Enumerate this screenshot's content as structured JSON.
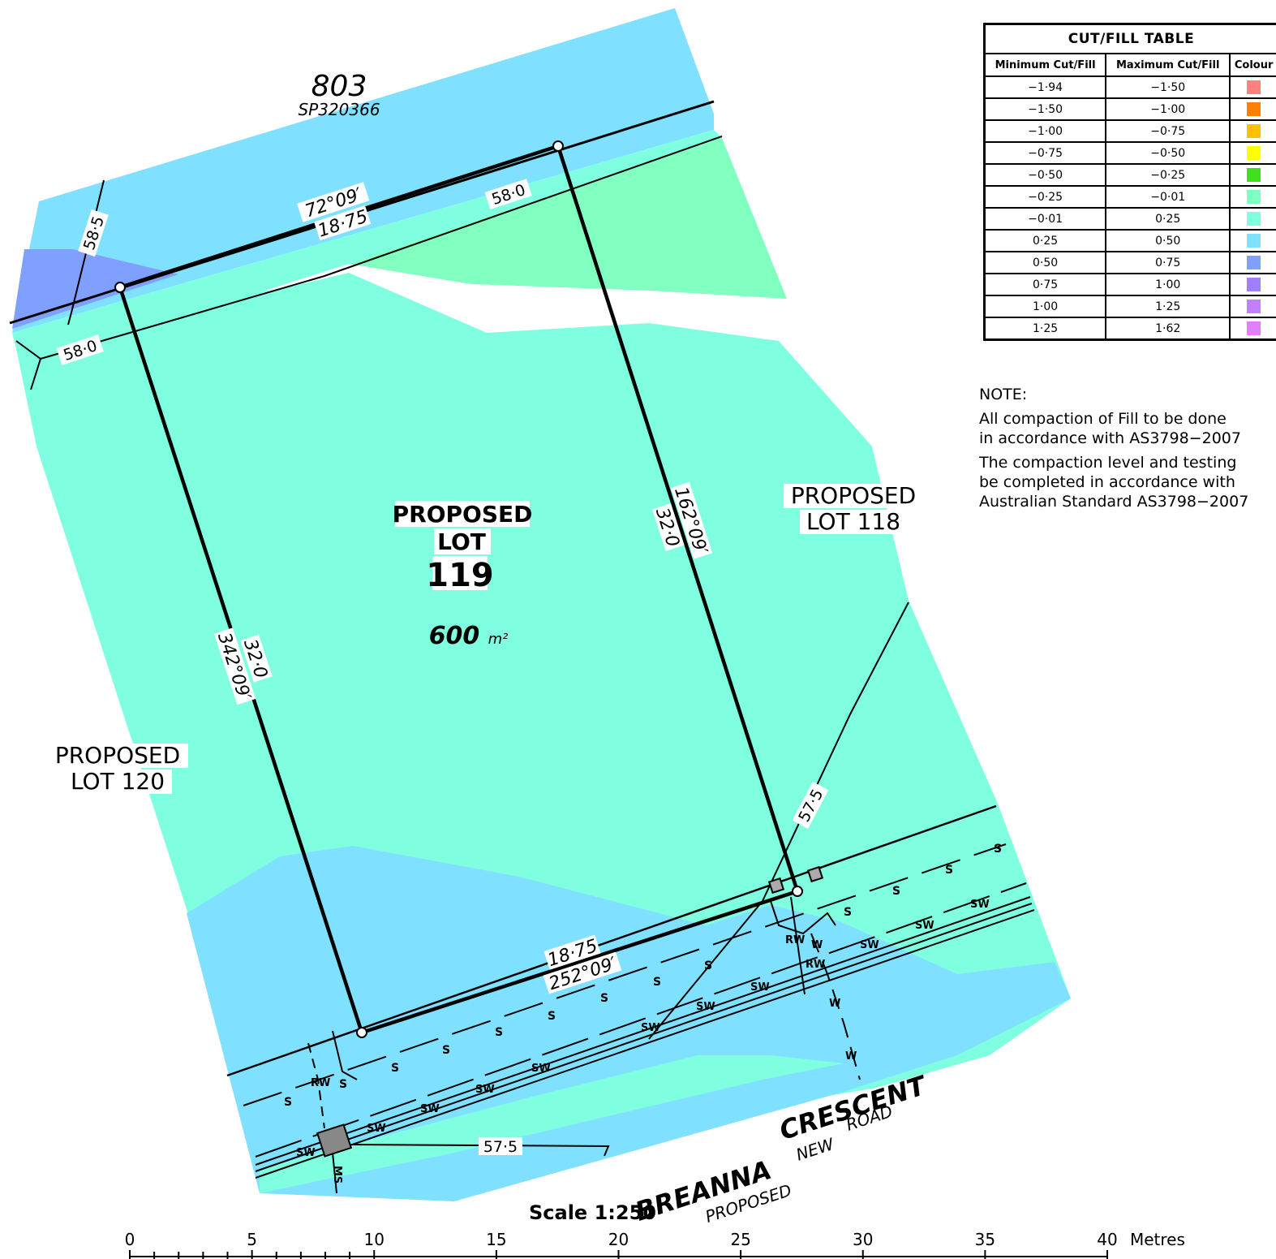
{
  "lot": {
    "title_1": "PROPOSED",
    "title_2": "LOT",
    "number": "119",
    "area_value": "600",
    "area_unit": "m²"
  },
  "neighbours": {
    "lot_118_line1": "PROPOSED",
    "lot_118_line2": "LOT 118",
    "lot_120_line1": "PROPOSED",
    "lot_120_line2": "LOT 120",
    "parcel_number": "803",
    "parcel_plan": "SP320366"
  },
  "road": {
    "name_1": "BREANNA",
    "name_2": "CRESCENT",
    "sub_1": "PROPOSED",
    "sub_2": "NEW",
    "sub_3": "ROAD"
  },
  "boundary_labels": {
    "top_bearing": "72°09′",
    "top_distance": "18·75",
    "right_bearing": "162°09′",
    "right_distance": "32·0",
    "left_bearing": "342°09′",
    "left_distance": "32·0",
    "bottom_distance": "18·75",
    "bottom_bearing": "252°09′"
  },
  "contours": {
    "c58_0_a": "58·0",
    "c58_0_b": "58·0",
    "c58_5": "58·5",
    "c57_5_a": "57·5",
    "c57_5_b": "57·5"
  },
  "services": {
    "sewer": "S",
    "stormwater": "SW",
    "water": "W",
    "rainwater": "RW",
    "sewer_main": "MS"
  },
  "cut_fill_table": {
    "title": "CUT/FILL TABLE",
    "headers": [
      "Minimum Cut/Fill",
      "Maximum Cut/Fill",
      "Colour"
    ],
    "rows": [
      {
        "min": "−1·94",
        "max": "−1·50",
        "color": "#ff8080"
      },
      {
        "min": "−1·50",
        "max": "−1·00",
        "color": "#ff8000"
      },
      {
        "min": "−1·00",
        "max": "−0·75",
        "color": "#ffc000"
      },
      {
        "min": "−0·75",
        "max": "−0·50",
        "color": "#ffff00"
      },
      {
        "min": "−0·50",
        "max": "−0·25",
        "color": "#40e020"
      },
      {
        "min": "−0·25",
        "max": "−0·01",
        "color": "#80ffc0"
      },
      {
        "min": "−0·01",
        "max": "0·25",
        "color": "#80ffe0"
      },
      {
        "min": "0·25",
        "max": "0·50",
        "color": "#80e0ff"
      },
      {
        "min": "0·50",
        "max": "0·75",
        "color": "#80a0ff"
      },
      {
        "min": "0·75",
        "max": "1·00",
        "color": "#a080ff"
      },
      {
        "min": "1·00",
        "max": "1·25",
        "color": "#c080ff"
      },
      {
        "min": "1·25",
        "max": "1·62",
        "color": "#e080ff"
      }
    ]
  },
  "notes": {
    "heading": "NOTE:",
    "note_1a": "All compaction of Fill to be done",
    "note_1b": "in accordance with AS3798−2007",
    "note_2a": "The compaction level and testing",
    "note_2b": "be completed in accordance with",
    "note_2c": "Australian Standard AS3798−2007"
  },
  "scale_bar": {
    "title": "Scale 1:250",
    "ticks": [
      "0",
      "5",
      "10",
      "15",
      "20",
      "25",
      "30",
      "35",
      "40"
    ],
    "unit": "Metres"
  },
  "colors": {
    "fill_0_25": "#80e0ff",
    "fill_neg001": "#80ffe0",
    "fill_neg025": "#80ffc0",
    "fill_050": "#80a0ff"
  }
}
